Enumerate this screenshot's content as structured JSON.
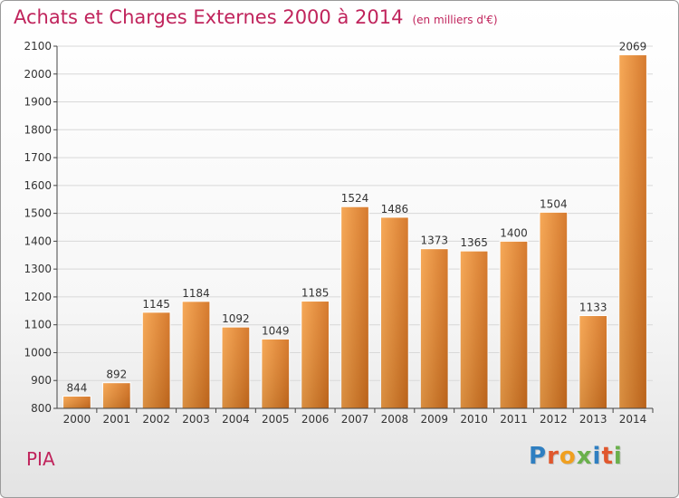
{
  "header": {
    "title": "Achats et Charges Externes 2000 à 2014",
    "subtitle": "(en milliers d'€)"
  },
  "footer": {
    "commune": "PIA",
    "logo_letters": [
      {
        "ch": "P",
        "color": "#2f7fc1"
      },
      {
        "ch": "r",
        "color": "#e0572d"
      },
      {
        "ch": "o",
        "color": "#f0a020"
      },
      {
        "ch": "x",
        "color": "#6ab04c"
      },
      {
        "ch": "i",
        "color": "#2f7fc1"
      },
      {
        "ch": "t",
        "color": "#e0572d"
      },
      {
        "ch": "i",
        "color": "#6ab04c"
      }
    ]
  },
  "colors": {
    "bar_light": "#f6a24a",
    "bar_dark": "#d26f1d",
    "grid": "#d8d8d8",
    "axis": "#444444",
    "title": "#c0245c"
  },
  "chart_data": {
    "type": "bar",
    "categories": [
      "2000",
      "2001",
      "2002",
      "2003",
      "2004",
      "2005",
      "2006",
      "2007",
      "2008",
      "2009",
      "2010",
      "2011",
      "2012",
      "2013",
      "2014"
    ],
    "values": [
      844,
      892,
      1145,
      1184,
      1092,
      1049,
      1185,
      1524,
      1486,
      1373,
      1365,
      1400,
      1504,
      1133,
      2069
    ],
    "ylim": [
      800,
      2100
    ],
    "yticks": [
      800,
      900,
      1000,
      1100,
      1200,
      1300,
      1400,
      1500,
      1600,
      1700,
      1800,
      1900,
      2000,
      2100
    ],
    "grid": true,
    "legend": "none"
  }
}
